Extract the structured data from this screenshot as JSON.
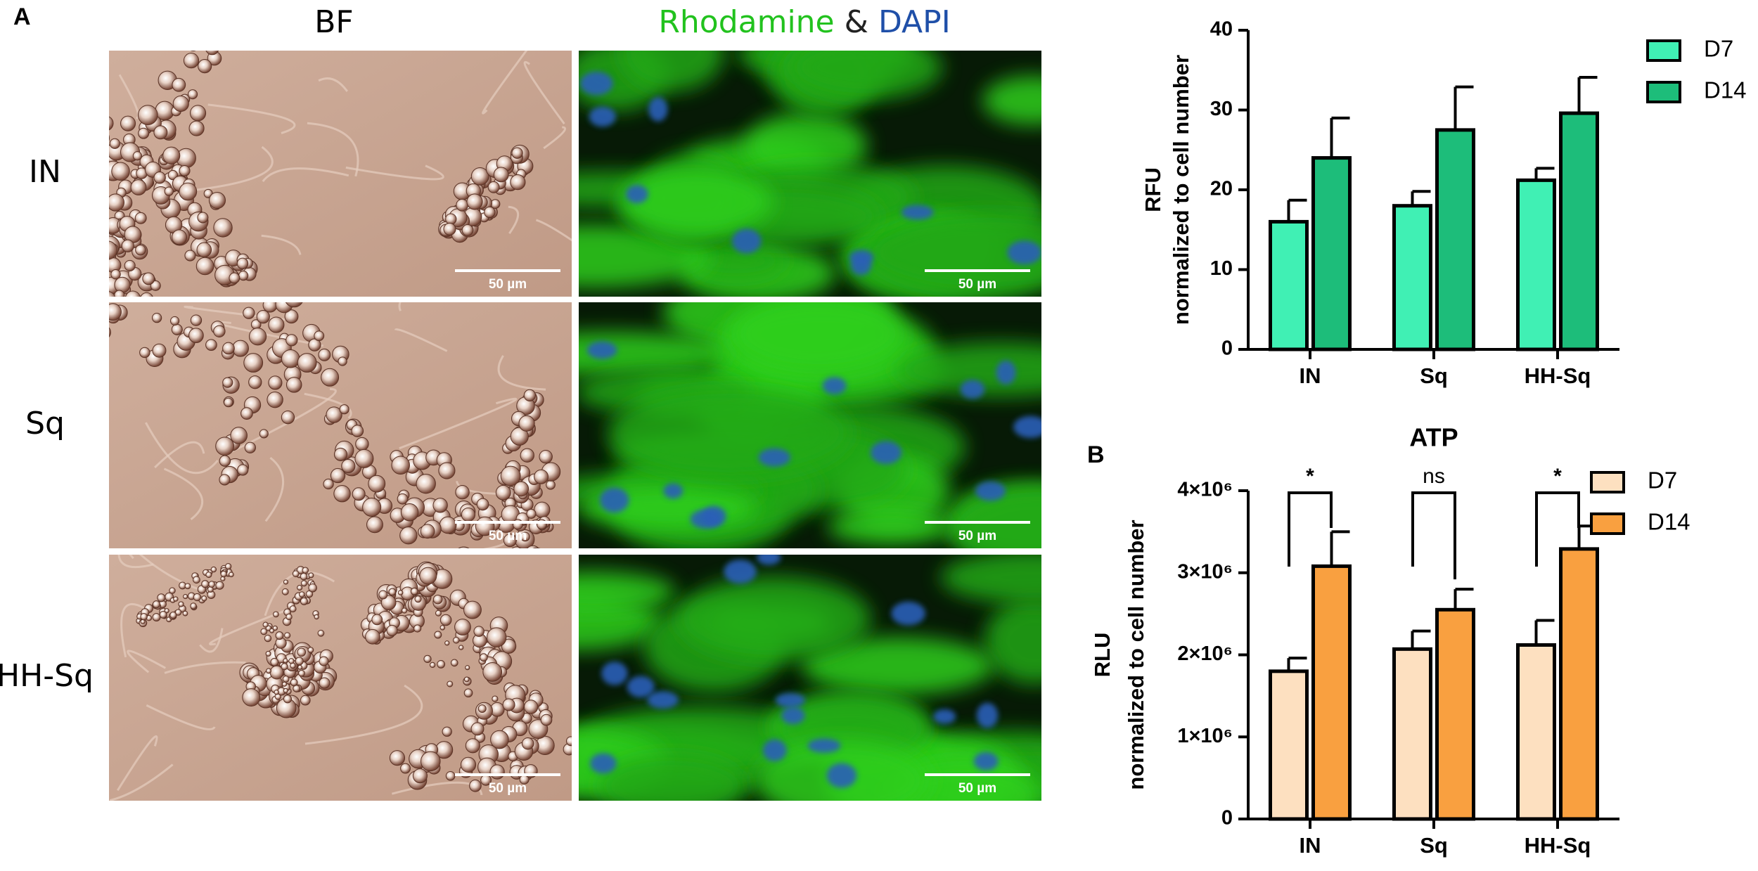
{
  "panel_a": {
    "label": "A",
    "columns": [
      "BF",
      "Rhodamine",
      "&",
      "DAPI"
    ],
    "rows": [
      "IN",
      "Sq",
      "HH-Sq"
    ],
    "scale_bars": [
      "50 µm",
      "50 µm",
      "50 µm",
      "50 µm",
      "50 µm",
      "50 µm"
    ]
  },
  "panel_b": {
    "label": "B"
  },
  "chart_data": [
    {
      "type": "bar",
      "ylabel": [
        "RFU",
        "normalized to cell number"
      ],
      "categories": [
        "IN",
        "Sq",
        "HH-Sq"
      ],
      "series": [
        {
          "name": "D7",
          "color": "#40f0b4",
          "values": [
            16,
            18,
            21.2
          ],
          "errors": [
            2.7,
            1.8,
            1.5
          ]
        },
        {
          "name": "D14",
          "color": "#1dbd7a",
          "values": [
            24,
            27.5,
            29.6
          ],
          "errors": [
            5,
            5.4,
            4.5
          ]
        }
      ],
      "ylim": [
        0,
        40
      ],
      "yticks": [
        0,
        10,
        20,
        30,
        40
      ],
      "legend": "top-right"
    },
    {
      "type": "bar",
      "title": "ATP",
      "ylabel": [
        "RLU",
        "normalized to cell number"
      ],
      "categories": [
        "IN",
        "Sq",
        "HH-Sq"
      ],
      "series": [
        {
          "name": "D7",
          "color": "#fde0c0",
          "values": [
            1800000,
            2070000,
            2120000
          ],
          "errors": [
            160000,
            220000,
            300000
          ]
        },
        {
          "name": "D14",
          "color": "#f9a040",
          "values": [
            3080000,
            2550000,
            3290000
          ],
          "errors": [
            420000,
            250000,
            280000
          ]
        }
      ],
      "significance": [
        "*",
        "ns",
        "*"
      ],
      "ylim": [
        0,
        4000000
      ],
      "yticks": [
        0,
        {
          "value": 1000000,
          "label": "1×10⁶"
        },
        {
          "value": 2000000,
          "label": "2×10⁶"
        },
        {
          "value": 3000000,
          "label": "3×10⁶"
        },
        {
          "value": 4000000,
          "label": "4×10⁶"
        }
      ],
      "legend": "top-right"
    }
  ]
}
